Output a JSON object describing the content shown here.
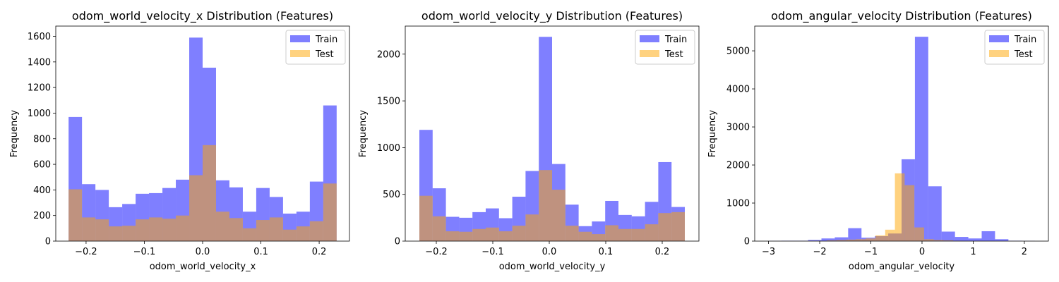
{
  "chart_data": [
    {
      "type": "bar",
      "title": "odom_world_velocity_x Distribution (Features)",
      "xlabel": "odom_world_velocity_x",
      "ylabel": "Frequency",
      "xlim": [
        -0.252,
        0.252
      ],
      "ylim": [
        0,
        1680
      ],
      "xticks": [
        -0.2,
        -0.1,
        0.0,
        0.1,
        0.2
      ],
      "xtick_labels": [
        "−0.2",
        "−0.1",
        "0.0",
        "0.1",
        "0.2"
      ],
      "yticks": [
        0,
        200,
        400,
        600,
        800,
        1000,
        1200,
        1400,
        1600
      ],
      "yticks_labels": [
        "0",
        "200",
        "400",
        "600",
        "800",
        "1000",
        "1200",
        "1400",
        "1600"
      ],
      "legend": {
        "position": "upper-right"
      },
      "series": [
        {
          "name": "Train",
          "color": "#0000ff",
          "bin_start": -0.23,
          "bin_width": 0.023,
          "values": [
            970,
            445,
            400,
            265,
            290,
            370,
            375,
            415,
            480,
            1590,
            1355,
            475,
            420,
            230,
            415,
            345,
            215,
            230,
            465,
            1060
          ]
        },
        {
          "name": "Test",
          "color": "#ffa500",
          "bin_start": -0.23,
          "bin_width": 0.023,
          "values": [
            405,
            185,
            170,
            115,
            120,
            170,
            185,
            175,
            200,
            515,
            750,
            230,
            180,
            100,
            165,
            185,
            90,
            115,
            155,
            450
          ]
        }
      ]
    },
    {
      "type": "bar",
      "title": "odom_world_velocity_y Distribution (Features)",
      "xlabel": "odom_world_velocity_y",
      "ylabel": "Frequency",
      "xlim": [
        -0.255,
        0.265
      ],
      "ylim": [
        0,
        2300
      ],
      "xticks": [
        -0.2,
        -0.1,
        0.0,
        0.1,
        0.2
      ],
      "xtick_labels": [
        "−0.2",
        "−0.1",
        "0.0",
        "0.1",
        "0.2"
      ],
      "yticks": [
        0,
        500,
        1000,
        1500,
        2000
      ],
      "yticks_labels": [
        "0",
        "500",
        "1000",
        "1500",
        "2000"
      ],
      "legend": {
        "position": "upper-right"
      },
      "series": [
        {
          "name": "Train",
          "color": "#0000ff",
          "bin_start": -0.23,
          "bin_width": 0.0235,
          "values": [
            1190,
            565,
            260,
            250,
            310,
            350,
            245,
            475,
            750,
            2185,
            825,
            390,
            160,
            210,
            430,
            280,
            265,
            420,
            845,
            365
          ]
        },
        {
          "name": "Test",
          "color": "#ffa500",
          "bin_start": -0.23,
          "bin_width": 0.0235,
          "values": [
            485,
            265,
            105,
            100,
            130,
            145,
            105,
            165,
            285,
            760,
            550,
            165,
            100,
            75,
            170,
            130,
            130,
            180,
            300,
            310
          ]
        }
      ]
    },
    {
      "type": "bar",
      "title": "odom_angular_velocity Distribution (Features)",
      "xlabel": "odom_angular_velocity",
      "ylabel": "Frequency",
      "xlim": [
        -3.27,
        2.47
      ],
      "ylim": [
        0,
        5650
      ],
      "xticks": [
        -3,
        -2,
        -1,
        0,
        1,
        2
      ],
      "xtick_labels": [
        "−3",
        "−2",
        "−1",
        "0",
        "1",
        "2"
      ],
      "yticks": [
        0,
        1000,
        2000,
        3000,
        4000,
        5000
      ],
      "yticks_labels": [
        "0",
        "1000",
        "2000",
        "3000",
        "4000",
        "5000"
      ],
      "legend": {
        "position": "upper-right"
      },
      "series": [
        {
          "name": "Train",
          "color": "#0000ff",
          "bin_start": -3.01,
          "bin_width": 0.261,
          "values": [
            5,
            10,
            10,
            30,
            70,
            100,
            340,
            90,
            130,
            200,
            2150,
            5370,
            1440,
            250,
            110,
            70,
            260,
            50,
            10,
            5
          ]
        }
      ],
      "overlay": {
        "name": "Test",
        "color": "#ffa500",
        "bin_start": -2.24,
        "bin_width": 0.19,
        "values": [
          5,
          5,
          20,
          30,
          40,
          50,
          70,
          150,
          300,
          1780,
          1470,
          360,
          50,
          30,
          20,
          10,
          5,
          5,
          0,
          0
        ]
      }
    }
  ]
}
